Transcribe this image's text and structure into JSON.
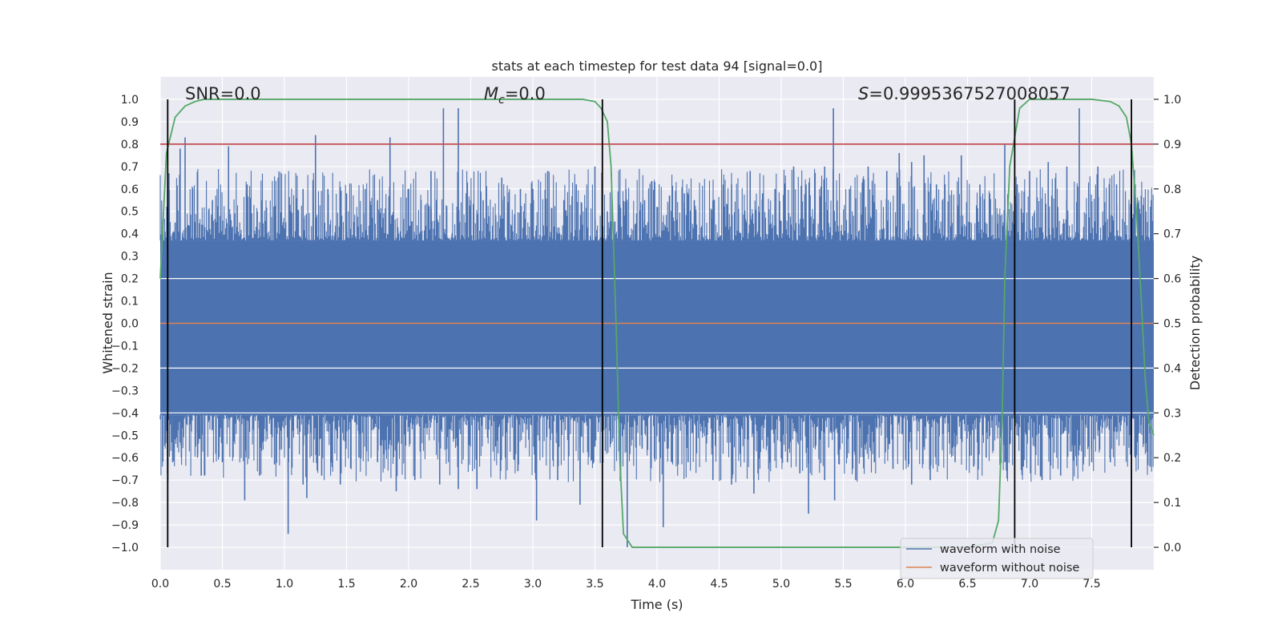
{
  "chart_data": {
    "type": "line",
    "title": "stats at each timestep for test data 94 [signal=0.0]",
    "xlabel": "Time (s)",
    "ylabel": "Whitened strain",
    "y2label": "Detection probability",
    "xlim": [
      0.0,
      8.0
    ],
    "ylim": [
      -1.1,
      1.1
    ],
    "y2lim": [
      -0.05,
      1.05
    ],
    "xticks": [
      "0.0",
      "0.5",
      "1.0",
      "1.5",
      "2.0",
      "2.5",
      "3.0",
      "3.5",
      "4.0",
      "4.5",
      "5.0",
      "5.5",
      "6.0",
      "6.5",
      "7.0",
      "7.5"
    ],
    "yticks": [
      "1.0",
      "0.9",
      "0.8",
      "0.7",
      "0.6",
      "0.5",
      "0.4",
      "0.3",
      "0.2",
      "0.1",
      "0.0",
      "-0.1",
      "-0.2",
      "-0.3",
      "-0.4",
      "-0.5",
      "-0.6",
      "-0.7",
      "-0.8",
      "-0.9",
      "-1.0"
    ],
    "y2ticks": [
      "1.0",
      "0.9",
      "0.8",
      "0.7",
      "0.6",
      "0.5",
      "0.4",
      "0.3",
      "0.2",
      "0.1",
      "0.0"
    ],
    "annotations": {
      "snr": "SNR=0.0",
      "mc_symbol": "M",
      "mc_sub": "c",
      "mc_value": "=0.0",
      "s_symbol": "S",
      "s_value": "=0.9995367527008057"
    },
    "legend": {
      "location": "lower-right",
      "entries": [
        "waveform with noise",
        "waveform without noise"
      ]
    },
    "colors": {
      "noise": "#4c72b0",
      "clean": "#dd8452",
      "probability": "#55a868",
      "threshold": "#c44e52",
      "markers": "#000000",
      "plot_bg": "#eaeaf2",
      "grid": "#ffffff"
    },
    "series": [
      {
        "name": "waveform with noise",
        "kind": "noise-band",
        "envelope_upper": [
          [
            0.0,
            0.37
          ],
          [
            0.5,
            0.37
          ],
          [
            1.0,
            0.37
          ],
          [
            1.5,
            0.37
          ],
          [
            2.0,
            0.37
          ],
          [
            2.5,
            0.37
          ],
          [
            3.0,
            0.37
          ],
          [
            3.5,
            0.37
          ],
          [
            4.0,
            0.37
          ],
          [
            4.5,
            0.37
          ],
          [
            5.0,
            0.37
          ],
          [
            5.5,
            0.37
          ],
          [
            6.0,
            0.37
          ],
          [
            6.5,
            0.37
          ],
          [
            7.0,
            0.37
          ],
          [
            7.5,
            0.37
          ],
          [
            8.0,
            0.37
          ]
        ],
        "envelope_lower": [
          [
            0.0,
            -0.41
          ],
          [
            8.0,
            -0.41
          ]
        ],
        "peaks_up": [
          [
            0.07,
            0.67
          ],
          [
            0.12,
            0.45
          ],
          [
            0.16,
            0.78
          ],
          [
            0.2,
            0.83
          ],
          [
            0.3,
            0.6
          ],
          [
            0.42,
            0.55
          ],
          [
            0.55,
            0.79
          ],
          [
            0.7,
            0.62
          ],
          [
            0.82,
            0.55
          ],
          [
            0.95,
            0.65
          ],
          [
            1.05,
            0.5
          ],
          [
            1.15,
            0.6
          ],
          [
            1.25,
            0.84
          ],
          [
            1.35,
            0.6
          ],
          [
            1.5,
            0.58
          ],
          [
            1.65,
            0.6
          ],
          [
            1.75,
            0.55
          ],
          [
            1.85,
            0.83
          ],
          [
            2.0,
            0.6
          ],
          [
            2.1,
            0.55
          ],
          [
            2.18,
            0.68
          ],
          [
            2.28,
            0.96
          ],
          [
            2.4,
            0.96
          ],
          [
            2.5,
            0.55
          ],
          [
            2.6,
            0.55
          ],
          [
            2.75,
            0.65
          ],
          [
            2.9,
            0.6
          ],
          [
            3.0,
            0.6
          ],
          [
            3.12,
            0.68
          ],
          [
            3.25,
            0.55
          ],
          [
            3.35,
            0.62
          ],
          [
            3.5,
            0.7
          ],
          [
            3.6,
            0.5
          ],
          [
            3.75,
            0.6
          ],
          [
            3.9,
            0.55
          ],
          [
            4.0,
            0.52
          ],
          [
            4.1,
            0.57
          ],
          [
            4.22,
            0.58
          ],
          [
            4.3,
            0.55
          ],
          [
            4.45,
            0.55
          ],
          [
            4.6,
            0.62
          ],
          [
            4.75,
            0.68
          ],
          [
            4.85,
            0.58
          ],
          [
            4.95,
            0.6
          ],
          [
            5.1,
            0.7
          ],
          [
            5.2,
            0.62
          ],
          [
            5.35,
            0.7
          ],
          [
            5.42,
            0.96
          ],
          [
            5.55,
            0.6
          ],
          [
            5.7,
            0.7
          ],
          [
            5.85,
            0.68
          ],
          [
            5.95,
            0.76
          ],
          [
            6.05,
            0.72
          ],
          [
            6.15,
            0.75
          ],
          [
            6.25,
            0.62
          ],
          [
            6.45,
            0.75
          ],
          [
            6.6,
            0.62
          ],
          [
            6.8,
            0.8
          ],
          [
            6.9,
            0.62
          ],
          [
            7.0,
            0.68
          ],
          [
            7.15,
            0.72
          ],
          [
            7.3,
            0.7
          ],
          [
            7.4,
            0.96
          ],
          [
            7.55,
            0.7
          ],
          [
            7.7,
            0.62
          ],
          [
            7.85,
            0.62
          ],
          [
            7.98,
            0.55
          ]
        ],
        "peaks_down": [
          [
            0.05,
            -0.48
          ],
          [
            0.1,
            -0.62
          ],
          [
            0.17,
            -0.6
          ],
          [
            0.3,
            -0.6
          ],
          [
            0.33,
            -0.68
          ],
          [
            0.5,
            -0.62
          ],
          [
            0.68,
            -0.79
          ],
          [
            0.8,
            -0.68
          ],
          [
            0.92,
            -0.63
          ],
          [
            1.03,
            -0.94
          ],
          [
            1.15,
            -0.72
          ],
          [
            1.18,
            -0.78
          ],
          [
            1.3,
            -0.68
          ],
          [
            1.45,
            -0.72
          ],
          [
            1.6,
            -0.6
          ],
          [
            1.75,
            -0.62
          ],
          [
            1.9,
            -0.75
          ],
          [
            2.05,
            -0.7
          ],
          [
            2.25,
            -0.72
          ],
          [
            2.4,
            -0.74
          ],
          [
            2.55,
            -0.74
          ],
          [
            2.7,
            -0.55
          ],
          [
            2.88,
            -0.66
          ],
          [
            3.03,
            -0.88
          ],
          [
            3.2,
            -0.7
          ],
          [
            3.38,
            -0.81
          ],
          [
            3.5,
            -0.55
          ],
          [
            3.76,
            -1.0
          ],
          [
            3.88,
            -0.56
          ],
          [
            4.05,
            -0.91
          ],
          [
            4.12,
            -0.62
          ],
          [
            4.25,
            -0.62
          ],
          [
            4.45,
            -0.7
          ],
          [
            4.6,
            -0.72
          ],
          [
            4.78,
            -0.76
          ],
          [
            4.9,
            -0.65
          ],
          [
            5.05,
            -0.62
          ],
          [
            5.15,
            -0.67
          ],
          [
            5.22,
            -0.85
          ],
          [
            5.35,
            -0.7
          ],
          [
            5.43,
            -0.79
          ],
          [
            5.6,
            -0.7
          ],
          [
            5.75,
            -0.62
          ],
          [
            5.9,
            -0.65
          ],
          [
            6.05,
            -0.72
          ],
          [
            6.2,
            -0.7
          ],
          [
            6.4,
            -0.62
          ],
          [
            6.55,
            -0.64
          ],
          [
            6.65,
            -0.6
          ],
          [
            6.8,
            -0.62
          ],
          [
            6.95,
            -0.64
          ],
          [
            7.1,
            -0.7
          ],
          [
            7.25,
            -0.68
          ],
          [
            7.35,
            -0.6
          ],
          [
            7.5,
            -0.62
          ],
          [
            7.65,
            -0.62
          ],
          [
            7.85,
            -0.6
          ],
          [
            7.97,
            -0.64
          ]
        ]
      },
      {
        "name": "waveform without noise",
        "kind": "line",
        "points": [
          [
            0.0,
            0.0
          ],
          [
            8.0,
            0.0
          ]
        ]
      },
      {
        "name": "detection probability",
        "axis": "right",
        "kind": "line",
        "points": [
          [
            0.0,
            0.6
          ],
          [
            0.05,
            0.88
          ],
          [
            0.12,
            0.96
          ],
          [
            0.2,
            0.985
          ],
          [
            0.28,
            0.995
          ],
          [
            0.35,
            1.0
          ],
          [
            1.0,
            1.0
          ],
          [
            2.0,
            1.0
          ],
          [
            3.0,
            1.0
          ],
          [
            3.4,
            1.0
          ],
          [
            3.5,
            0.995
          ],
          [
            3.55,
            0.98
          ],
          [
            3.6,
            0.95
          ],
          [
            3.63,
            0.85
          ],
          [
            3.67,
            0.5
          ],
          [
            3.7,
            0.2
          ],
          [
            3.73,
            0.03
          ],
          [
            3.8,
            0.0
          ],
          [
            4.5,
            0.0
          ],
          [
            5.5,
            0.0
          ],
          [
            6.5,
            0.0
          ],
          [
            6.7,
            0.01
          ],
          [
            6.75,
            0.06
          ],
          [
            6.78,
            0.3
          ],
          [
            6.8,
            0.6
          ],
          [
            6.84,
            0.85
          ],
          [
            6.92,
            0.98
          ],
          [
            7.0,
            1.0
          ],
          [
            7.5,
            1.0
          ],
          [
            7.65,
            0.995
          ],
          [
            7.72,
            0.985
          ],
          [
            7.78,
            0.96
          ],
          [
            7.82,
            0.9
          ],
          [
            7.86,
            0.75
          ],
          [
            7.9,
            0.55
          ],
          [
            7.93,
            0.38
          ],
          [
            7.96,
            0.28
          ],
          [
            8.0,
            0.25
          ]
        ]
      }
    ],
    "threshold": {
      "axis": "right",
      "value": 0.9
    },
    "vertical_markers": [
      0.06,
      3.56,
      6.88,
      7.82
    ]
  }
}
